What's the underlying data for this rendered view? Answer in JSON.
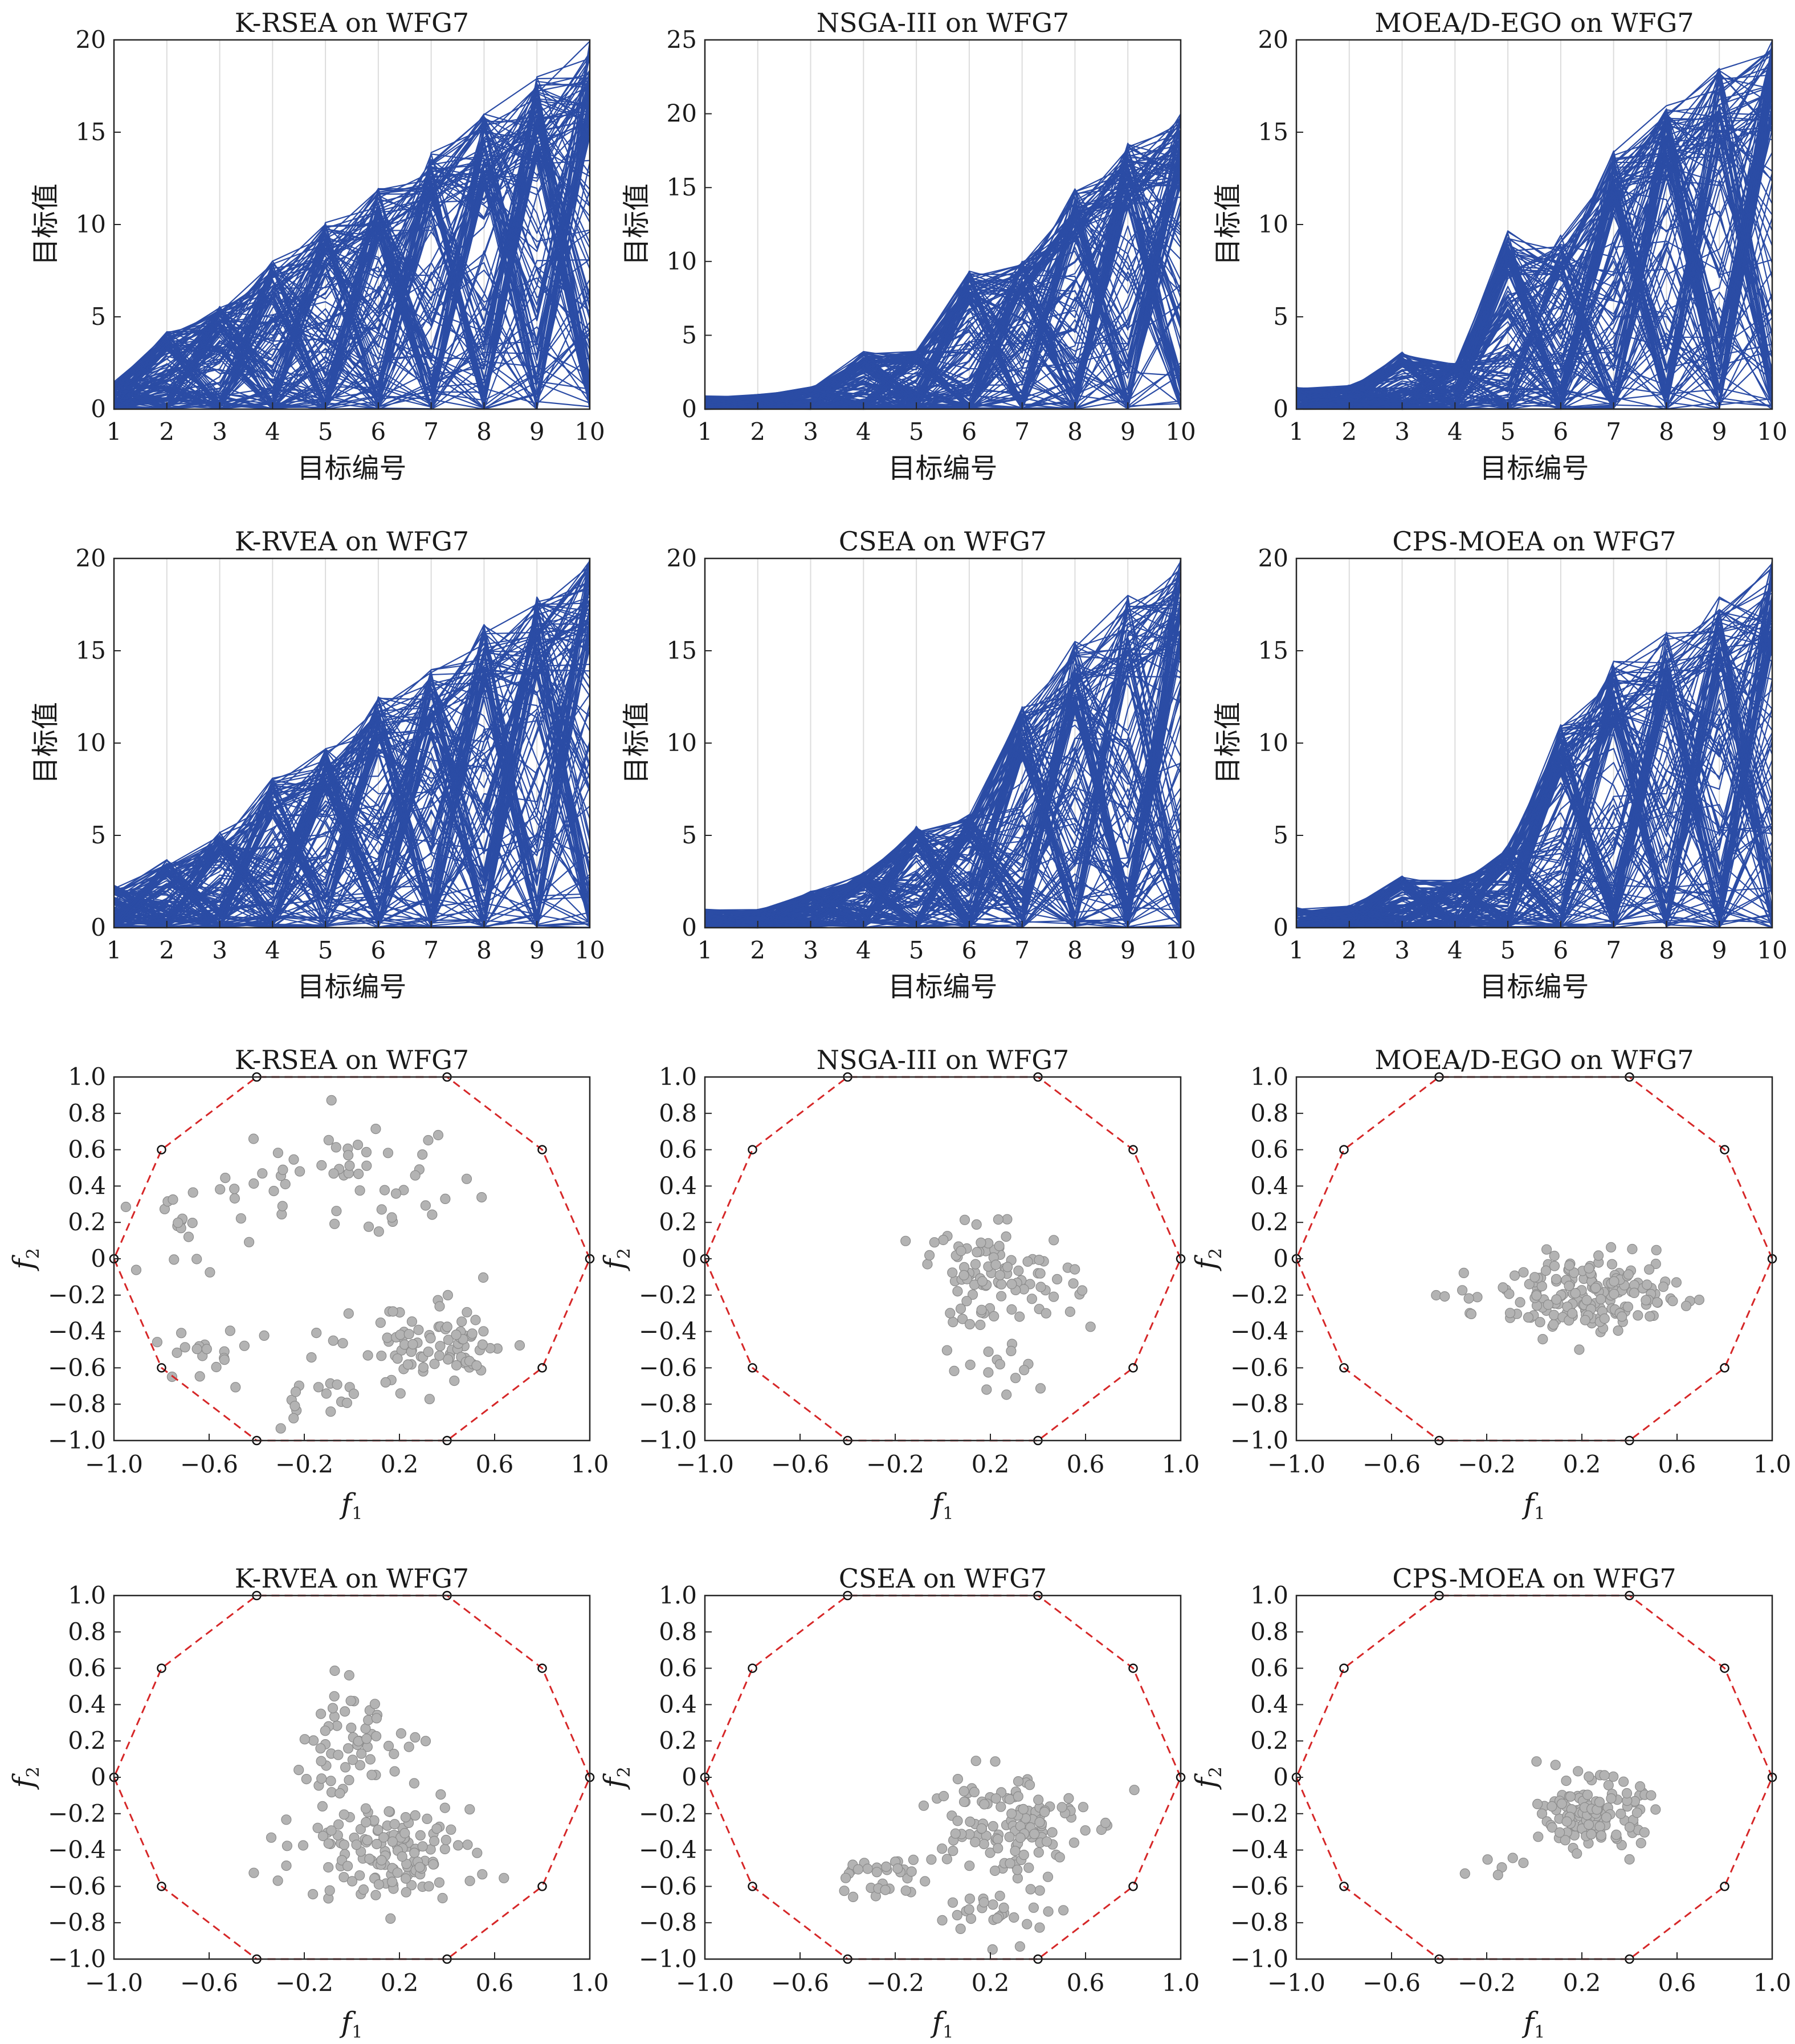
{
  "figure": {
    "panels": [
      {
        "title": "K-RSEA on WFG7",
        "kind": "parallel"
      },
      {
        "title": "NSGA-III on WFG7",
        "kind": "parallel"
      },
      {
        "title": "MOEA/D-EGO on WFG7",
        "kind": "parallel"
      },
      {
        "title": "K-RVEA on WFG7",
        "kind": "parallel"
      },
      {
        "title": "CSEA on WFG7",
        "kind": "parallel"
      },
      {
        "title": "CPS-MOEA on WFG7",
        "kind": "parallel"
      },
      {
        "title": "K-RSEA on WFG7",
        "kind": "scatter"
      },
      {
        "title": "NSGA-III on WFG7",
        "kind": "scatter"
      },
      {
        "title": "MOEA/D-EGO on WFG7",
        "kind": "scatter"
      },
      {
        "title": "K-RVEA on WFG7",
        "kind": "scatter"
      },
      {
        "title": "CSEA on WFG7",
        "kind": "scatter"
      },
      {
        "title": "CPS-MOEA on WFG7",
        "kind": "scatter"
      }
    ]
  },
  "chart_data": [
    {
      "type": "line",
      "subtype": "parallel-coordinates",
      "title": "K-RSEA on WFG7",
      "xlabel": "目标编号",
      "ylabel": "目标值",
      "xlim": [
        1,
        10
      ],
      "ylim": [
        0,
        20
      ],
      "xticks": [
        1,
        2,
        3,
        4,
        5,
        6,
        7,
        8,
        9,
        10
      ],
      "yticks": [
        0,
        5,
        10,
        15,
        20
      ],
      "envelope_max": [
        1.5,
        4.2,
        5.6,
        8.1,
        10.2,
        12.0,
        14.0,
        16.0,
        18.0,
        20.0
      ],
      "line_color": "#2b4ca5"
    },
    {
      "type": "line",
      "subtype": "parallel-coordinates",
      "title": "NSGA-III on WFG7",
      "xlabel": "目标编号",
      "ylabel": "目标值",
      "xlim": [
        1,
        10
      ],
      "ylim": [
        0,
        25
      ],
      "xticks": [
        1,
        2,
        3,
        4,
        5,
        6,
        7,
        8,
        9,
        10
      ],
      "yticks": [
        0,
        5,
        10,
        15,
        20,
        25
      ],
      "envelope_max": [
        0.9,
        1.0,
        1.5,
        3.9,
        4.0,
        9.5,
        10.0,
        15.0,
        18.0,
        20.0
      ],
      "line_color": "#2b4ca5"
    },
    {
      "type": "line",
      "subtype": "parallel-coordinates",
      "title": "MOEA/D-EGO on WFG7",
      "xlabel": "目标编号",
      "ylabel": "目标值",
      "xlim": [
        1,
        10
      ],
      "ylim": [
        0,
        20
      ],
      "xticks": [
        1,
        2,
        3,
        4,
        5,
        6,
        7,
        8,
        9,
        10
      ],
      "yticks": [
        0,
        5,
        10,
        15,
        20
      ],
      "envelope_max": [
        1.2,
        1.3,
        3.1,
        2.5,
        9.7,
        9.5,
        14.0,
        16.5,
        18.5,
        20.0
      ],
      "line_color": "#2b4ca5"
    },
    {
      "type": "line",
      "subtype": "parallel-coordinates",
      "title": "K-RVEA on WFG7",
      "xlabel": "目标编号",
      "ylabel": "目标值",
      "xlim": [
        1,
        10
      ],
      "ylim": [
        0,
        20
      ],
      "xticks": [
        1,
        2,
        3,
        4,
        5,
        6,
        7,
        8,
        9,
        10
      ],
      "yticks": [
        0,
        5,
        10,
        15,
        20
      ],
      "envelope_max": [
        2.3,
        3.7,
        5.2,
        8.1,
        9.7,
        12.5,
        14.0,
        16.5,
        18.0,
        20.0
      ],
      "line_color": "#2b4ca5"
    },
    {
      "type": "line",
      "subtype": "parallel-coordinates",
      "title": "CSEA on WFG7",
      "xlabel": "目标编号",
      "ylabel": "目标值",
      "xlim": [
        1,
        10
      ],
      "ylim": [
        0,
        20
      ],
      "xticks": [
        1,
        2,
        3,
        4,
        5,
        6,
        7,
        8,
        9,
        10
      ],
      "yticks": [
        0,
        5,
        10,
        15,
        20
      ],
      "envelope_max": [
        1.0,
        1.0,
        2.0,
        3.0,
        5.5,
        6.2,
        12.0,
        15.5,
        18.0,
        20.0
      ],
      "line_color": "#2b4ca5"
    },
    {
      "type": "line",
      "subtype": "parallel-coordinates",
      "title": "CPS-MOEA on WFG7",
      "xlabel": "目标编号",
      "ylabel": "目标值",
      "xlim": [
        1,
        10
      ],
      "ylim": [
        0,
        20
      ],
      "xticks": [
        1,
        2,
        3,
        4,
        5,
        6,
        7,
        8,
        9,
        10
      ],
      "yticks": [
        0,
        5,
        10,
        15,
        20
      ],
      "envelope_max": [
        1.1,
        1.2,
        2.8,
        2.6,
        4.5,
        11.0,
        14.5,
        16.0,
        18.0,
        20.0
      ],
      "line_color": "#2b4ca5"
    },
    {
      "type": "scatter",
      "title": "K-RSEA on WFG7",
      "xlabel": "f1",
      "ylabel": "f2",
      "xlim": [
        -1,
        1
      ],
      "ylim": [
        -1,
        1
      ],
      "xticks": [
        "−1.0",
        "−0.6",
        "−0.2",
        "0.2",
        "0.6",
        "1.0"
      ],
      "yticks": [
        "−1.0",
        "−0.8",
        "−0.6",
        "−0.4",
        "−0.2",
        "0",
        "0.2",
        "0.4",
        "0.6",
        "0.8",
        "1.0"
      ],
      "polygon_vertices": [
        [
          1,
          0
        ],
        [
          0.8,
          0.6
        ],
        [
          0.4,
          1
        ],
        [
          -0.4,
          1
        ],
        [
          -0.8,
          0.6
        ],
        [
          -1,
          0
        ],
        [
          -0.8,
          -0.6
        ],
        [
          -0.4,
          -1
        ],
        [
          0.4,
          -1
        ],
        [
          0.8,
          -0.6
        ]
      ],
      "polygon_color": "#d62728",
      "point_color": "#b3b3b3",
      "point_clusters": [
        [
          -0.68,
          0.2,
          0.18,
          0.22,
          22
        ],
        [
          0.0,
          0.45,
          0.5,
          0.25,
          50
        ],
        [
          0.35,
          -0.5,
          0.28,
          0.2,
          90
        ],
        [
          -0.6,
          -0.55,
          0.2,
          0.15,
          20
        ],
        [
          -0.15,
          -0.8,
          0.15,
          0.12,
          15
        ]
      ]
    },
    {
      "type": "scatter",
      "title": "NSGA-III on WFG7",
      "xlabel": "f1",
      "ylabel": "f2",
      "xlim": [
        -1,
        1
      ],
      "ylim": [
        -1,
        1
      ],
      "xticks": [
        "−1.0",
        "−0.6",
        "−0.2",
        "0.2",
        "0.6",
        "1.0"
      ],
      "yticks": [
        "−1.0",
        "−0.8",
        "−0.6",
        "−0.4",
        "−0.2",
        "0",
        "0.2",
        "0.4",
        "0.6",
        "0.8",
        "1.0"
      ],
      "polygon_vertices": [
        [
          1,
          0
        ],
        [
          0.8,
          0.6
        ],
        [
          0.4,
          1
        ],
        [
          -0.4,
          1
        ],
        [
          -0.8,
          0.6
        ],
        [
          -1,
          0
        ],
        [
          -0.8,
          -0.6
        ],
        [
          -0.4,
          -1
        ],
        [
          0.4,
          -1
        ],
        [
          0.8,
          -0.6
        ]
      ],
      "polygon_color": "#d62728",
      "point_color": "#b3b3b3",
      "point_clusters": [
        [
          0.22,
          -0.1,
          0.28,
          0.22,
          100
        ],
        [
          0.25,
          -0.55,
          0.2,
          0.15,
          15
        ]
      ]
    },
    {
      "type": "scatter",
      "title": "MOEA/D-EGO on WFG7",
      "xlabel": "f1",
      "ylabel": "f2",
      "xlim": [
        -1,
        1
      ],
      "ylim": [
        -1,
        1
      ],
      "xticks": [
        "−1.0",
        "−0.6",
        "−0.2",
        "0.2",
        "0.6",
        "1.0"
      ],
      "yticks": [
        "−1.0",
        "−0.8",
        "−0.6",
        "−0.4",
        "−0.2",
        "0",
        "0.2",
        "0.4",
        "0.6",
        "0.8",
        "1.0"
      ],
      "polygon_vertices": [
        [
          1,
          0
        ],
        [
          0.8,
          0.6
        ],
        [
          0.4,
          1
        ],
        [
          -0.4,
          1
        ],
        [
          -0.8,
          0.6
        ],
        [
          -1,
          0
        ],
        [
          -0.8,
          -0.6
        ],
        [
          -0.4,
          -1
        ],
        [
          0.4,
          -1
        ],
        [
          0.8,
          -0.6
        ]
      ],
      "polygon_color": "#d62728",
      "point_color": "#b3b3b3",
      "point_clusters": [
        [
          0.25,
          -0.2,
          0.3,
          0.17,
          180
        ],
        [
          -0.3,
          -0.3,
          0.1,
          0.1,
          6
        ]
      ]
    },
    {
      "type": "scatter",
      "title": "K-RVEA on WFG7",
      "xlabel": "f1",
      "ylabel": "f2",
      "xlim": [
        -1,
        1
      ],
      "ylim": [
        -1,
        1
      ],
      "xticks": [
        "−1.0",
        "−0.6",
        "−0.2",
        "0.2",
        "0.6",
        "1.0"
      ],
      "yticks": [
        "−1.0",
        "−0.8",
        "−0.6",
        "−0.4",
        "−0.2",
        "0",
        "0.2",
        "0.4",
        "0.6",
        "0.8",
        "1.0"
      ],
      "polygon_vertices": [
        [
          1,
          0
        ],
        [
          0.8,
          0.6
        ],
        [
          0.4,
          1
        ],
        [
          -0.4,
          1
        ],
        [
          -0.8,
          0.6
        ],
        [
          -1,
          0
        ],
        [
          -0.8,
          -0.6
        ],
        [
          -0.4,
          -1
        ],
        [
          0.4,
          -1
        ],
        [
          0.8,
          -0.6
        ]
      ],
      "polygon_color": "#d62728",
      "point_color": "#b3b3b3",
      "point_clusters": [
        [
          0.0,
          0.2,
          0.25,
          0.25,
          60
        ],
        [
          0.15,
          -0.4,
          0.3,
          0.22,
          140
        ]
      ]
    },
    {
      "type": "scatter",
      "title": "CSEA on WFG7",
      "xlabel": "f1",
      "ylabel": "f2",
      "xlim": [
        -1,
        1
      ],
      "ylim": [
        -1,
        1
      ],
      "xticks": [
        "−1.0",
        "−0.6",
        "−0.2",
        "0.2",
        "0.6",
        "1.0"
      ],
      "yticks": [
        "−1.0",
        "−0.8",
        "−0.6",
        "−0.4",
        "−0.2",
        "0",
        "0.2",
        "0.4",
        "0.6",
        "0.8",
        "1.0"
      ],
      "polygon_vertices": [
        [
          1,
          0
        ],
        [
          0.8,
          0.6
        ],
        [
          0.4,
          1
        ],
        [
          -0.4,
          1
        ],
        [
          -0.8,
          0.6
        ],
        [
          -1,
          0
        ],
        [
          -0.8,
          -0.6
        ],
        [
          -0.4,
          -1
        ],
        [
          0.4,
          -1
        ],
        [
          0.8,
          -0.6
        ]
      ],
      "polygon_color": "#d62728",
      "point_color": "#b3b3b3",
      "point_clusters": [
        [
          0.25,
          -0.25,
          0.28,
          0.25,
          130
        ],
        [
          -0.25,
          -0.55,
          0.15,
          0.12,
          30
        ],
        [
          0.25,
          -0.75,
          0.2,
          0.12,
          30
        ]
      ]
    },
    {
      "type": "scatter",
      "title": "CPS-MOEA on WFG7",
      "xlabel": "f1",
      "ylabel": "f2",
      "xlim": [
        -1,
        1
      ],
      "ylim": [
        -1,
        1
      ],
      "xticks": [
        "−1.0",
        "−0.6",
        "−0.2",
        "0.2",
        "0.6",
        "1.0"
      ],
      "yticks": [
        "−1.0",
        "−0.8",
        "−0.6",
        "−0.4",
        "−0.2",
        "0",
        "0.2",
        "0.4",
        "0.6",
        "0.8",
        "1.0"
      ],
      "polygon_vertices": [
        [
          1,
          0
        ],
        [
          0.8,
          0.6
        ],
        [
          0.4,
          1
        ],
        [
          -0.4,
          1
        ],
        [
          -0.8,
          0.6
        ],
        [
          -1,
          0
        ],
        [
          -0.8,
          -0.6
        ],
        [
          -0.4,
          -1
        ],
        [
          0.4,
          -1
        ],
        [
          0.8,
          -0.6
        ]
      ],
      "polygon_color": "#d62728",
      "point_color": "#b3b3b3",
      "point_clusters": [
        [
          0.25,
          -0.2,
          0.17,
          0.15,
          140
        ],
        [
          -0.15,
          -0.5,
          0.1,
          0.1,
          6
        ]
      ]
    }
  ]
}
